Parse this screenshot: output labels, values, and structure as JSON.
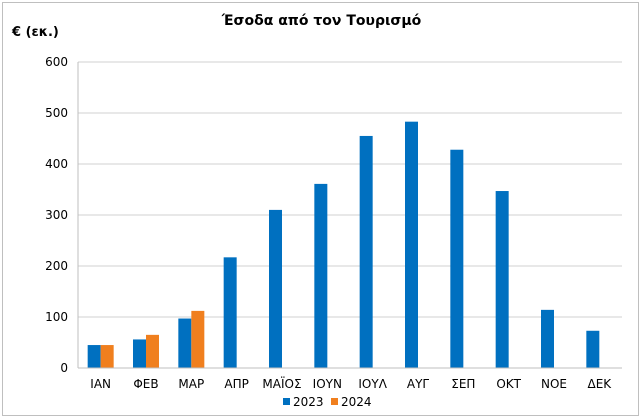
{
  "chart_data": {
    "type": "bar",
    "title": "Έσοδα από τον Τουρισμό",
    "ylabel": "€ (εκ.)",
    "xlabel": "",
    "categories": [
      "ΙΑΝ",
      "ΦΕΒ",
      "ΜΑΡ",
      "ΑΠΡ",
      "ΜΑΪΟΣ",
      "ΙΟΥΝ",
      "ΙΟΥΛ",
      "ΑΥΓ",
      "ΣΕΠ",
      "ΟΚΤ",
      "ΝΟΕ",
      "ΔΕΚ"
    ],
    "series": [
      {
        "name": "2023",
        "color": "#0070c0",
        "values": [
          45,
          56,
          97,
          217,
          310,
          361,
          455,
          483,
          428,
          347,
          114,
          73
        ]
      },
      {
        "name": "2024",
        "color": "#f07f1e",
        "values": [
          45,
          65,
          112,
          null,
          null,
          null,
          null,
          null,
          null,
          null,
          null,
          null
        ]
      }
    ],
    "ylim": [
      0,
      600
    ],
    "yticks": [
      0,
      100,
      200,
      300,
      400,
      500,
      600
    ],
    "grid": true,
    "legend_position": "bottom-center"
  }
}
